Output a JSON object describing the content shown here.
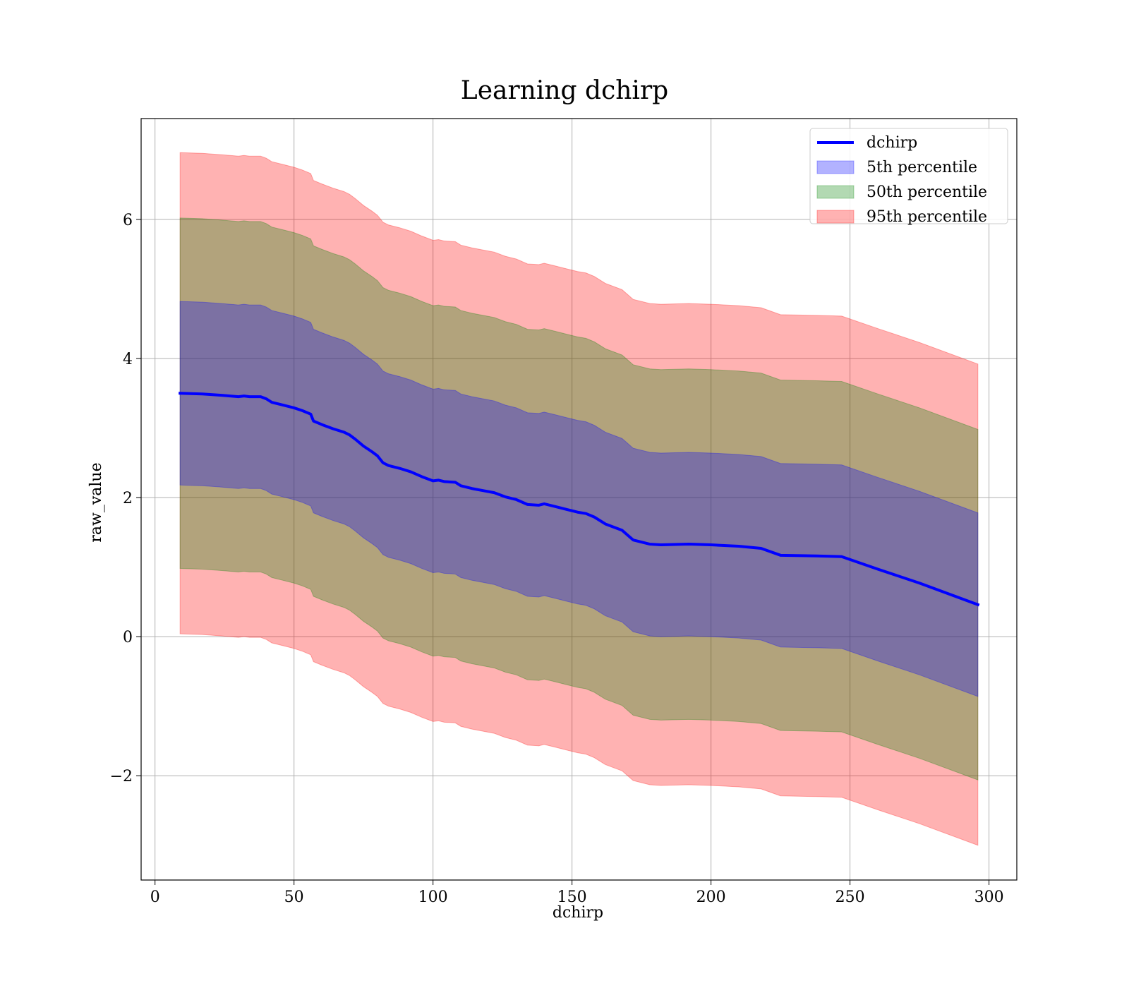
{
  "chart_data": {
    "type": "area",
    "title": "Learning dchirp",
    "xlabel": "dchirp",
    "ylabel": "raw_value",
    "xlim": [
      -5,
      310
    ],
    "ylim": [
      -3.5,
      7.45
    ],
    "xticks": [
      0,
      50,
      100,
      150,
      200,
      250,
      300
    ],
    "xtick_labels": [
      "0",
      "50",
      "100",
      "150",
      "200",
      "250",
      "300"
    ],
    "yticks": [
      -2,
      0,
      2,
      4,
      6
    ],
    "ytick_labels": [
      "−2",
      "0",
      "2",
      "4",
      "6"
    ],
    "grid": true,
    "legend_position": "top-right",
    "legend": [
      "dchirp",
      "5th percentile",
      "50th percentile",
      "95th percentile"
    ],
    "colors": {
      "line": "#0000ff",
      "band_5th": "#0000ff",
      "band_50th": "#008000",
      "band_95th": "#ff0000"
    },
    "series": [
      {
        "name": "dchirp",
        "x": [
          9,
          17,
          24,
          30,
          32,
          34,
          36,
          38,
          40,
          42,
          46,
          50,
          53,
          56,
          57,
          60,
          64,
          68,
          70,
          72,
          75,
          78,
          80,
          82,
          84,
          88,
          92,
          96,
          100,
          102,
          104,
          108,
          110,
          114,
          118,
          122,
          126,
          130,
          134,
          138,
          140,
          144,
          148,
          152,
          155,
          158,
          162,
          168,
          172,
          178,
          182,
          192,
          200,
          210,
          218,
          225,
          238,
          247,
          260,
          275,
          296
        ],
        "y": [
          3.5,
          3.49,
          3.47,
          3.45,
          3.46,
          3.45,
          3.45,
          3.45,
          3.42,
          3.37,
          3.33,
          3.29,
          3.25,
          3.2,
          3.1,
          3.05,
          2.99,
          2.94,
          2.9,
          2.84,
          2.74,
          2.66,
          2.6,
          2.5,
          2.46,
          2.42,
          2.37,
          2.3,
          2.24,
          2.25,
          2.23,
          2.22,
          2.17,
          2.13,
          2.1,
          2.07,
          2.01,
          1.97,
          1.9,
          1.89,
          1.91,
          1.87,
          1.83,
          1.79,
          1.77,
          1.72,
          1.62,
          1.53,
          1.39,
          1.33,
          1.32,
          1.33,
          1.32,
          1.3,
          1.27,
          1.17,
          1.16,
          1.15,
          0.97,
          0.77,
          0.46
        ]
      },
      {
        "name": "5th percentile",
        "offset": 1.32
      },
      {
        "name": "50th percentile",
        "offset": 2.52
      },
      {
        "name": "95th percentile",
        "offset": 3.46
      }
    ]
  }
}
